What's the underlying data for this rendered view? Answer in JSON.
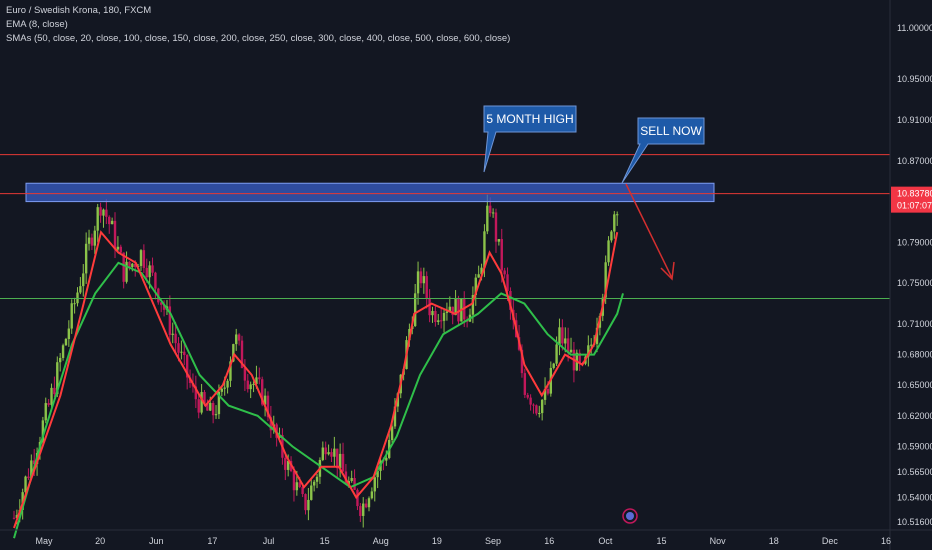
{
  "legend": {
    "symbol": "Euro / Swedish Krona, 180, FXCM",
    "ema": "EMA (8, close)",
    "smas": "SMAs (50, close, 20, close, 100, close, 150, close, 200, close, 250, close, 300, close, 400, close, 500, close, 600, close)"
  },
  "colors": {
    "background": "#131722",
    "axis_text": "#d1d4dc",
    "up_candle": "#8bc34a",
    "down_candle": "#c2185b",
    "ema": "#ff3b3b",
    "sma": "#2fbf4a",
    "resistance": "#e53935",
    "support": "#4caf50",
    "zone": "#3a5fc8",
    "callout": "#1e5aa8",
    "price_badge": "#f23645",
    "arrow": "#d32f2f"
  },
  "annotations": {
    "five_month_high": "5 MONTH HIGH",
    "sell_now": "SELL NOW"
  },
  "price_badge": {
    "price": "10.83780",
    "countdown": "01:07:07"
  },
  "chart_data": {
    "type": "candlestick",
    "instrument": "Euro / Swedish Krona",
    "timeframe": "180",
    "source": "FXCM",
    "x_tick_labels": [
      "May",
      "20",
      "Jun",
      "17",
      "Jul",
      "15",
      "Aug",
      "19",
      "Sep",
      "16",
      "Oct",
      "15",
      "Nov",
      "18",
      "Dec",
      "16"
    ],
    "y_tick_labels": [
      "11.00000",
      "10.95000",
      "10.91000",
      "10.87000",
      "10.83780",
      "10.79000",
      "10.75000",
      "10.71000",
      "10.68000",
      "10.65000",
      "10.62000",
      "10.59000",
      "10.56500",
      "10.54000",
      "10.51600"
    ],
    "ylim": [
      10.51,
      11.01
    ],
    "levels": {
      "resistance": 10.876,
      "zone_top": 10.848,
      "zone_bottom": 10.83,
      "support": 10.735
    },
    "price_path": [
      [
        0,
        10.52
      ],
      [
        6,
        10.63
      ],
      [
        10,
        10.72
      ],
      [
        13,
        10.79
      ],
      [
        15,
        10.83
      ],
      [
        17,
        10.8
      ],
      [
        19,
        10.76
      ],
      [
        22,
        10.78
      ],
      [
        25,
        10.74
      ],
      [
        28,
        10.69
      ],
      [
        31,
        10.64
      ],
      [
        34,
        10.62
      ],
      [
        36,
        10.64
      ],
      [
        38,
        10.7
      ],
      [
        40,
        10.66
      ],
      [
        43,
        10.64
      ],
      [
        45,
        10.6
      ],
      [
        48,
        10.56
      ],
      [
        50,
        10.53
      ],
      [
        52,
        10.56
      ],
      [
        54,
        10.6
      ],
      [
        57,
        10.56
      ],
      [
        60,
        10.53
      ],
      [
        62,
        10.56
      ],
      [
        64,
        10.58
      ],
      [
        66,
        10.63
      ],
      [
        68,
        10.7
      ],
      [
        70,
        10.76
      ],
      [
        72,
        10.72
      ],
      [
        75,
        10.73
      ],
      [
        78,
        10.72
      ],
      [
        80,
        10.75
      ],
      [
        82,
        10.83
      ],
      [
        84,
        10.77
      ],
      [
        86,
        10.71
      ],
      [
        88,
        10.65
      ],
      [
        90,
        10.63
      ],
      [
        92,
        10.64
      ],
      [
        94,
        10.7
      ],
      [
        96,
        10.68
      ],
      [
        98,
        10.66
      ],
      [
        100,
        10.7
      ],
      [
        102,
        10.76
      ],
      [
        103,
        10.81
      ],
      [
        104,
        10.83
      ]
    ],
    "ema_8": [
      [
        0,
        10.51
      ],
      [
        8,
        10.64
      ],
      [
        12,
        10.73
      ],
      [
        15,
        10.8
      ],
      [
        18,
        10.78
      ],
      [
        21,
        10.77
      ],
      [
        24,
        10.73
      ],
      [
        27,
        10.69
      ],
      [
        30,
        10.66
      ],
      [
        33,
        10.63
      ],
      [
        36,
        10.65
      ],
      [
        38,
        10.68
      ],
      [
        41,
        10.66
      ],
      [
        44,
        10.62
      ],
      [
        47,
        10.58
      ],
      [
        50,
        10.55
      ],
      [
        53,
        10.57
      ],
      [
        56,
        10.57
      ],
      [
        59,
        10.54
      ],
      [
        62,
        10.56
      ],
      [
        65,
        10.61
      ],
      [
        67,
        10.66
      ],
      [
        69,
        10.72
      ],
      [
        72,
        10.73
      ],
      [
        76,
        10.72
      ],
      [
        79,
        10.73
      ],
      [
        82,
        10.78
      ],
      [
        84,
        10.76
      ],
      [
        86,
        10.72
      ],
      [
        88,
        10.67
      ],
      [
        91,
        10.64
      ],
      [
        93,
        10.66
      ],
      [
        95,
        10.68
      ],
      [
        98,
        10.67
      ],
      [
        100,
        10.69
      ],
      [
        102,
        10.74
      ],
      [
        104,
        10.8
      ]
    ],
    "sma": [
      [
        0,
        10.5
      ],
      [
        5,
        10.6
      ],
      [
        10,
        10.69
      ],
      [
        14,
        10.74
      ],
      [
        18,
        10.77
      ],
      [
        22,
        10.76
      ],
      [
        27,
        10.72
      ],
      [
        32,
        10.66
      ],
      [
        37,
        10.63
      ],
      [
        42,
        10.62
      ],
      [
        48,
        10.59
      ],
      [
        53,
        10.57
      ],
      [
        58,
        10.55
      ],
      [
        62,
        10.56
      ],
      [
        66,
        10.6
      ],
      [
        70,
        10.66
      ],
      [
        74,
        10.7
      ],
      [
        80,
        10.72
      ],
      [
        84,
        10.74
      ],
      [
        88,
        10.73
      ],
      [
        92,
        10.7
      ],
      [
        96,
        10.68
      ],
      [
        100,
        10.68
      ],
      [
        104,
        10.72
      ],
      [
        105,
        10.74
      ]
    ]
  }
}
